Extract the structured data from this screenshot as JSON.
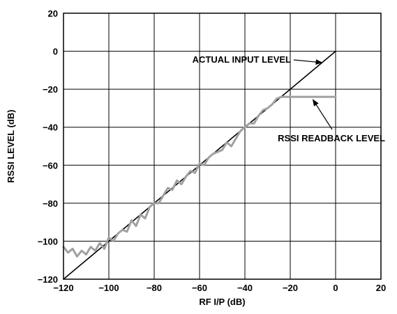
{
  "chart_data": {
    "type": "line",
    "title": "",
    "xlabel": "RF I/P (dB)",
    "ylabel": "RSSI LEVEL (dB)",
    "xlim": [
      -120,
      20
    ],
    "ylim": [
      -120,
      20
    ],
    "grid": true,
    "xticks": [
      "−120",
      "−100",
      "−80",
      "−60",
      "−40",
      "−20",
      "0",
      "20"
    ],
    "yticks": [
      "20",
      "0",
      "−20",
      "−40",
      "−60",
      "−80",
      "−100",
      "−120"
    ],
    "series": [
      {
        "name": "ACTUAL INPUT LEVEL",
        "color": "#000000",
        "x": [
          -120,
          0
        ],
        "y": [
          -120,
          0
        ]
      },
      {
        "name": "RSSI READBACK LEVEL",
        "color": "#a0a0a0",
        "x": [
          -120,
          -118,
          -116,
          -114,
          -112,
          -110,
          -108,
          -106,
          -104,
          -102,
          -100,
          -98,
          -96,
          -94,
          -92,
          -90,
          -88,
          -86,
          -84,
          -82,
          -80,
          -78,
          -76,
          -74,
          -72,
          -70,
          -68,
          -66,
          -64,
          -62,
          -60,
          -58,
          -56,
          -54,
          -52,
          -50,
          -48,
          -46,
          -44,
          -42,
          -40,
          -38,
          -36,
          -34,
          -32,
          -30,
          -28,
          -26,
          -24,
          0
        ],
        "y": [
          -103,
          -106,
          -104,
          -108,
          -105,
          -107,
          -103,
          -105,
          -101,
          -104,
          -98,
          -100,
          -96,
          -94,
          -95,
          -89,
          -92,
          -86,
          -88,
          -82,
          -80,
          -80,
          -76,
          -72,
          -73,
          -68,
          -70,
          -66,
          -63,
          -64,
          -59,
          -60,
          -56,
          -54,
          -53,
          -52,
          -48,
          -50,
          -46,
          -42,
          -40,
          -38,
          -38,
          -34,
          -31,
          -30,
          -28,
          -25,
          -24,
          -24
        ]
      }
    ],
    "annotations": [
      {
        "text": "ACTUAL INPUT LEVEL",
        "arrow_to": [
          -6,
          -6
        ]
      },
      {
        "text": "RSSI READBACK LEVEL",
        "arrow_to": [
          -10,
          -24
        ]
      }
    ]
  }
}
